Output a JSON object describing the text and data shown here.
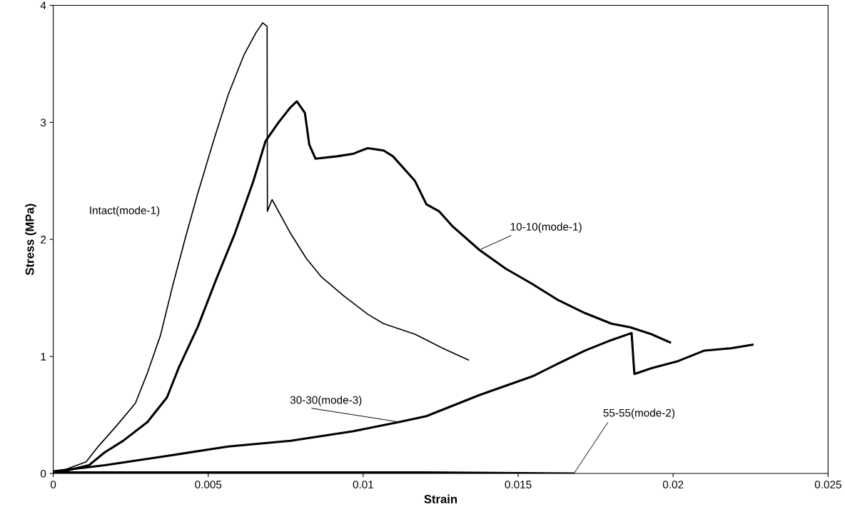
{
  "chart_data": {
    "type": "line",
    "xlabel": "Strain",
    "ylabel": "Stress (MPa)",
    "xlim": [
      0,
      0.025
    ],
    "ylim": [
      0,
      4
    ],
    "xticks": [
      0,
      0.005,
      0.01,
      0.015,
      0.02,
      0.025
    ],
    "yticks": [
      0,
      1,
      2,
      3,
      4
    ],
    "grid": false,
    "legend": false,
    "marker": "none",
    "line_style": "solid",
    "series": [
      {
        "name": "Intact(mode-1)",
        "color": "#000000",
        "x": [
          5e-05,
          0.00106,
          0.00145,
          0.00205,
          0.00265,
          0.00304,
          0.00346,
          0.00385,
          0.00427,
          0.00466,
          0.00517,
          0.00565,
          0.00616,
          0.00655,
          0.00676,
          0.0069,
          0.00691,
          0.00706,
          0.00766,
          0.00816,
          0.00865,
          0.00936,
          0.01015,
          0.01066,
          0.01167,
          0.01257,
          0.0134
        ],
        "values": [
          0,
          0.1,
          0.23,
          0.41,
          0.6,
          0.86,
          1.18,
          1.6,
          2.02,
          2.39,
          2.84,
          3.24,
          3.58,
          3.77,
          3.85,
          3.82,
          2.24,
          2.34,
          2.05,
          1.84,
          1.68,
          1.52,
          1.36,
          1.28,
          1.19,
          1.07,
          0.97
        ]
      },
      {
        "name": "10-10(mode-1)",
        "color": "#000000",
        "x": [
          5e-05,
          0.00115,
          0.00166,
          0.00226,
          0.00304,
          0.00367,
          0.00406,
          0.00466,
          0.00526,
          0.00586,
          0.00646,
          0.00685,
          0.00727,
          0.00766,
          0.00786,
          0.00812,
          0.00826,
          0.00846,
          0.00916,
          0.00966,
          0.01015,
          0.01066,
          0.01096,
          0.01167,
          0.01204,
          0.01245,
          0.01289,
          0.01375,
          0.0146,
          0.01545,
          0.0163,
          0.01716,
          0.01801,
          0.01861,
          0.0193,
          0.0199
        ],
        "values": [
          0,
          0.07,
          0.18,
          0.28,
          0.44,
          0.65,
          0.91,
          1.25,
          1.66,
          2.05,
          2.5,
          2.84,
          3.0,
          3.13,
          3.18,
          3.08,
          2.81,
          2.69,
          2.71,
          2.73,
          2.78,
          2.76,
          2.71,
          2.5,
          2.3,
          2.24,
          2.11,
          1.91,
          1.75,
          1.62,
          1.48,
          1.37,
          1.28,
          1.25,
          1.19,
          1.12
        ]
      },
      {
        "name": "30-30(mode-3)",
        "color": "#000000",
        "x": [
          5e-05,
          0.00166,
          0.00367,
          0.00565,
          0.00766,
          0.00966,
          0.01116,
          0.01204,
          0.01375,
          0.01546,
          0.0163,
          0.01716,
          0.01801,
          0.01866,
          0.01875,
          0.01931,
          0.02016,
          0.02101,
          0.02186,
          0.02256
        ],
        "values": [
          0.02,
          0.07,
          0.15,
          0.23,
          0.28,
          0.36,
          0.44,
          0.49,
          0.67,
          0.83,
          0.94,
          1.05,
          1.14,
          1.2,
          0.85,
          0.9,
          0.96,
          1.05,
          1.07,
          1.1
        ]
      },
      {
        "name": "55-55(mode-2)",
        "color": "#000000",
        "x": [
          0,
          0.004,
          0.008,
          0.012,
          0.0168
        ],
        "values": [
          0.01,
          0.01,
          0.01,
          0.01,
          0.0
        ]
      }
    ]
  }
}
